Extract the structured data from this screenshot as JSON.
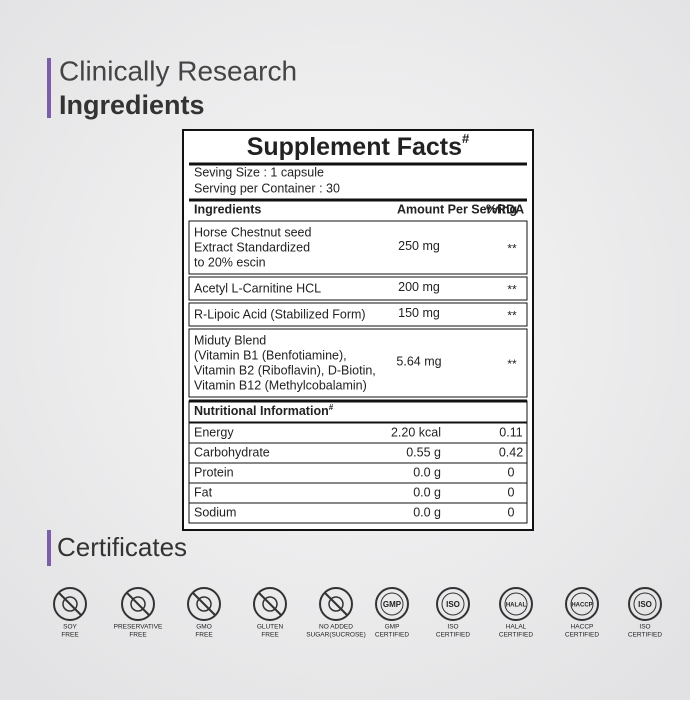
{
  "header": {
    "title_line1": "Clinically Research",
    "title_line2": "Ingredients"
  },
  "supplement_facts": {
    "title": "Supplement Facts",
    "title_mark": "#",
    "serving_size": "Seving Size : 1 capsule",
    "servings_per_container": "Serving per Container : 30",
    "columns": [
      "Ingredients",
      "Amount Per Serving",
      "%RDA"
    ],
    "rows": [
      {
        "name": [
          "Horse Chestnut seed",
          "Extract Standardized",
          "to 20% escin"
        ],
        "amount": "250 mg",
        "rda": "**"
      },
      {
        "name": [
          "Acetyl L-Carnitine HCL"
        ],
        "amount": "200 mg",
        "rda": "**"
      },
      {
        "name": [
          "R-Lipoic Acid (Stabilized Form)"
        ],
        "amount": "150 mg",
        "rda": "**"
      },
      {
        "name": [
          "Miduty Blend",
          "(Vitamin B1 (Benfotiamine),",
          "Vitamin B2 (Riboflavin), D-Biotin,",
          "Vitamin B12 (Methylcobalamin)"
        ],
        "amount": "5.64 mg",
        "rda": "**"
      }
    ],
    "nutrition_title": "Nutritional Information",
    "nutrition_mark": "#",
    "nutrition_rows": [
      [
        "Energy",
        "2.20 kcal",
        "0.11"
      ],
      [
        "Carbohydrate",
        "0.55 g",
        "0.42"
      ],
      [
        "Protein",
        "0.0 g",
        "0"
      ],
      [
        "Fat",
        "0.0 g",
        "0"
      ],
      [
        "Sodium",
        "0.0 g",
        "0"
      ]
    ]
  },
  "certificates": {
    "title": "Certificates",
    "items": [
      {
        "label": [
          "SOY",
          "FREE"
        ]
      },
      {
        "label": [
          "PRESERVATIVE",
          "FREE"
        ]
      },
      {
        "label": [
          "GMO",
          "FREE"
        ]
      },
      {
        "label": [
          "GLUTEN",
          "FREE"
        ]
      },
      {
        "label": [
          "NO ADDED",
          "SUGAR(SUCROSE)"
        ]
      },
      {
        "label": [
          "GMP",
          "CERTIFIED"
        ],
        "badge": "GMP"
      },
      {
        "label": [
          "ISO",
          "CERTIFIED"
        ],
        "badge": "ISO"
      },
      {
        "label": [
          "HALAL",
          "CERTIFIED"
        ],
        "badge": "HALAL"
      },
      {
        "label": [
          "HACCP",
          "CERTIFIED"
        ],
        "badge": "HACCP"
      },
      {
        "label": [
          "ISO",
          "CERTIFIED"
        ],
        "badge": "ISO"
      }
    ]
  }
}
